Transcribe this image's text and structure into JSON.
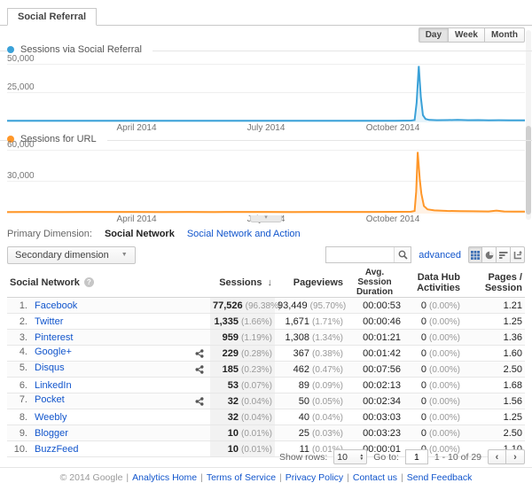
{
  "tab": {
    "label": "Social Referral"
  },
  "granularity": {
    "options": [
      "Day",
      "Week",
      "Month"
    ],
    "selected": "Day"
  },
  "colors": {
    "series_blue": "#3aa1d8",
    "series_orange": "#ff9729",
    "link": "#1155cc"
  },
  "chart_data": [
    {
      "type": "line",
      "legend": "Sessions via Social Referral",
      "color": "#3aa1d8",
      "y_ticks": [
        "50,000",
        "25,000"
      ],
      "y_tick_values": [
        50000,
        25000
      ],
      "ymax": 55000,
      "x_ticks": [
        "April 2014",
        "July 2014",
        "October 2014"
      ],
      "x_tick_pos": [
        0.25,
        0.5,
        0.745
      ],
      "points": [
        [
          0,
          150
        ],
        [
          0.05,
          180
        ],
        [
          0.1,
          160
        ],
        [
          0.15,
          200
        ],
        [
          0.2,
          170
        ],
        [
          0.25,
          190
        ],
        [
          0.3,
          160
        ],
        [
          0.35,
          180
        ],
        [
          0.4,
          170
        ],
        [
          0.45,
          200
        ],
        [
          0.5,
          180
        ],
        [
          0.55,
          170
        ],
        [
          0.6,
          190
        ],
        [
          0.65,
          180
        ],
        [
          0.7,
          200
        ],
        [
          0.75,
          250
        ],
        [
          0.78,
          350
        ],
        [
          0.787,
          800
        ],
        [
          0.791,
          16000
        ],
        [
          0.795,
          48000
        ],
        [
          0.799,
          21000
        ],
        [
          0.803,
          5000
        ],
        [
          0.808,
          1800
        ],
        [
          0.815,
          900
        ],
        [
          0.83,
          700
        ],
        [
          0.85,
          800
        ],
        [
          0.87,
          900
        ],
        [
          0.89,
          700
        ],
        [
          0.91,
          750
        ],
        [
          0.93,
          600
        ],
        [
          0.95,
          700
        ],
        [
          0.97,
          600
        ],
        [
          1,
          550
        ]
      ]
    },
    {
      "type": "line",
      "legend": "Sessions for URL",
      "color": "#ff9729",
      "y_ticks": [
        "60,000",
        "30,000"
      ],
      "y_tick_values": [
        60000,
        30000
      ],
      "ymax": 64000,
      "x_ticks": [
        "April 2014",
        "July 2014",
        "October 2014"
      ],
      "x_tick_pos": [
        0.25,
        0.5,
        0.745
      ],
      "points": [
        [
          0,
          250
        ],
        [
          0.05,
          300
        ],
        [
          0.1,
          280
        ],
        [
          0.15,
          320
        ],
        [
          0.2,
          300
        ],
        [
          0.25,
          310
        ],
        [
          0.3,
          280
        ],
        [
          0.35,
          300
        ],
        [
          0.4,
          290
        ],
        [
          0.45,
          320
        ],
        [
          0.5,
          300
        ],
        [
          0.55,
          290
        ],
        [
          0.6,
          310
        ],
        [
          0.65,
          300
        ],
        [
          0.7,
          320
        ],
        [
          0.75,
          400
        ],
        [
          0.78,
          500
        ],
        [
          0.787,
          1200
        ],
        [
          0.79,
          20000
        ],
        [
          0.793,
          58000
        ],
        [
          0.797,
          32000
        ],
        [
          0.8,
          18000
        ],
        [
          0.805,
          6000
        ],
        [
          0.812,
          2800
        ],
        [
          0.825,
          1800
        ],
        [
          0.85,
          1300
        ],
        [
          0.875,
          1100
        ],
        [
          0.9,
          900
        ],
        [
          0.93,
          800
        ],
        [
          0.945,
          1600
        ],
        [
          0.96,
          800
        ],
        [
          0.98,
          700
        ],
        [
          1,
          700
        ]
      ]
    }
  ],
  "primary_dimension": {
    "label": "Primary Dimension:",
    "selected": "Social Network",
    "alternative": "Social Network and Action"
  },
  "toolbar": {
    "secondary_dimension_label": "Secondary dimension",
    "search_value": "",
    "advanced_label": "advanced",
    "view_buttons": [
      "table-view",
      "percentage-view",
      "performance-view",
      "pivot-view"
    ]
  },
  "table": {
    "headers": {
      "social_network": "Social Network",
      "sessions": "Sessions",
      "pageviews": "Pageviews",
      "avg_session_duration": "Avg. Session Duration",
      "data_hub_activities": "Data Hub Activities",
      "pages_per_session": "Pages / Session"
    },
    "rows": [
      {
        "index": "1.",
        "name": "Facebook",
        "share": false,
        "sessions": "77,526",
        "sessions_pct": "(96.38%)",
        "pageviews": "93,449",
        "pageviews_pct": "(95.70%)",
        "duration": "00:00:53",
        "hub": "0",
        "hub_pct": "(0.00%)",
        "pps": "1.21"
      },
      {
        "index": "2.",
        "name": "Twitter",
        "share": false,
        "sessions": "1,335",
        "sessions_pct": "(1.66%)",
        "pageviews": "1,671",
        "pageviews_pct": "(1.71%)",
        "duration": "00:00:46",
        "hub": "0",
        "hub_pct": "(0.00%)",
        "pps": "1.25"
      },
      {
        "index": "3.",
        "name": "Pinterest",
        "share": false,
        "sessions": "959",
        "sessions_pct": "(1.19%)",
        "pageviews": "1,308",
        "pageviews_pct": "(1.34%)",
        "duration": "00:01:21",
        "hub": "0",
        "hub_pct": "(0.00%)",
        "pps": "1.36"
      },
      {
        "index": "4.",
        "name": "Google+",
        "share": true,
        "sessions": "229",
        "sessions_pct": "(0.28%)",
        "pageviews": "367",
        "pageviews_pct": "(0.38%)",
        "duration": "00:01:42",
        "hub": "0",
        "hub_pct": "(0.00%)",
        "pps": "1.60"
      },
      {
        "index": "5.",
        "name": "Disqus",
        "share": true,
        "sessions": "185",
        "sessions_pct": "(0.23%)",
        "pageviews": "462",
        "pageviews_pct": "(0.47%)",
        "duration": "00:07:56",
        "hub": "0",
        "hub_pct": "(0.00%)",
        "pps": "2.50"
      },
      {
        "index": "6.",
        "name": "LinkedIn",
        "share": false,
        "sessions": "53",
        "sessions_pct": "(0.07%)",
        "pageviews": "89",
        "pageviews_pct": "(0.09%)",
        "duration": "00:02:13",
        "hub": "0",
        "hub_pct": "(0.00%)",
        "pps": "1.68"
      },
      {
        "index": "7.",
        "name": "Pocket",
        "share": true,
        "sessions": "32",
        "sessions_pct": "(0.04%)",
        "pageviews": "50",
        "pageviews_pct": "(0.05%)",
        "duration": "00:02:34",
        "hub": "0",
        "hub_pct": "(0.00%)",
        "pps": "1.56"
      },
      {
        "index": "8.",
        "name": "Weebly",
        "share": false,
        "sessions": "32",
        "sessions_pct": "(0.04%)",
        "pageviews": "40",
        "pageviews_pct": "(0.04%)",
        "duration": "00:03:03",
        "hub": "0",
        "hub_pct": "(0.00%)",
        "pps": "1.25"
      },
      {
        "index": "9.",
        "name": "Blogger",
        "share": false,
        "sessions": "10",
        "sessions_pct": "(0.01%)",
        "pageviews": "25",
        "pageviews_pct": "(0.03%)",
        "duration": "00:03:23",
        "hub": "0",
        "hub_pct": "(0.00%)",
        "pps": "2.50"
      },
      {
        "index": "10.",
        "name": "BuzzFeed",
        "share": false,
        "sessions": "10",
        "sessions_pct": "(0.01%)",
        "pageviews": "11",
        "pageviews_pct": "(0.01%)",
        "duration": "00:00:01",
        "hub": "0",
        "hub_pct": "(0.00%)",
        "pps": "1.10"
      }
    ]
  },
  "pagination": {
    "show_rows_label": "Show rows:",
    "rows_value": "10",
    "goto_label": "Go to:",
    "goto_value": "1",
    "range": "1 - 10 of 29",
    "prev_label": "‹",
    "next_label": "›"
  },
  "footer": {
    "copyright": "© 2014 Google",
    "links": [
      "Analytics Home",
      "Terms of Service",
      "Privacy Policy",
      "Contact us",
      "Send Feedback"
    ]
  }
}
